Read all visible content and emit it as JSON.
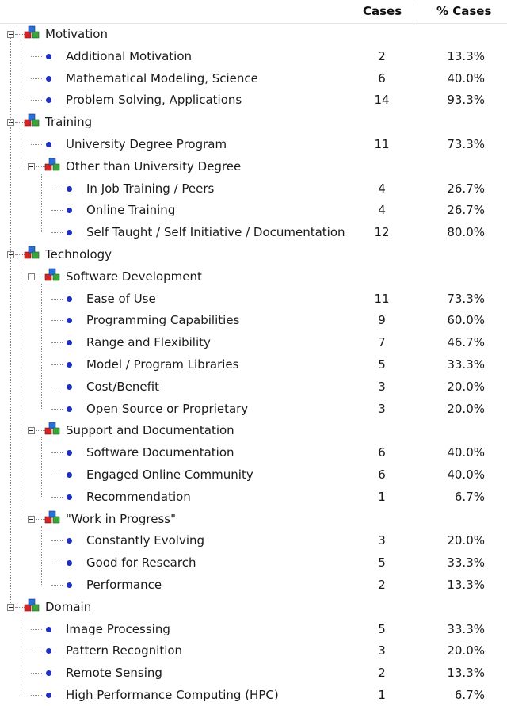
{
  "header": {
    "cases": "Cases",
    "pct": "% Cases"
  },
  "colors": {
    "dot": "#1f2fbf",
    "cube_red": "#d42424",
    "cube_blue": "#2a6fd6",
    "cube_green": "#3aa63a",
    "lines": "#8a8a8a"
  },
  "rows": [
    {
      "level": 0,
      "kind": "group",
      "label": "Motivation"
    },
    {
      "level": 1,
      "kind": "item",
      "label": "Additional Motivation",
      "cases": "2",
      "pct": "13.3%"
    },
    {
      "level": 1,
      "kind": "item",
      "label": "Mathematical Modeling, Science",
      "cases": "6",
      "pct": "40.0%"
    },
    {
      "level": 1,
      "kind": "item",
      "label": "Problem Solving, Applications",
      "cases": "14",
      "pct": "93.3%"
    },
    {
      "level": 0,
      "kind": "group",
      "label": "Training"
    },
    {
      "level": 1,
      "kind": "item",
      "label": "University Degree Program",
      "cases": "11",
      "pct": "73.3%"
    },
    {
      "level": 1,
      "kind": "group",
      "label": "Other than University Degree"
    },
    {
      "level": 2,
      "kind": "item",
      "label": "In Job Training / Peers",
      "cases": "4",
      "pct": "26.7%"
    },
    {
      "level": 2,
      "kind": "item",
      "label": "Online Training",
      "cases": "4",
      "pct": "26.7%"
    },
    {
      "level": 2,
      "kind": "item",
      "label": "Self Taught / Self Initiative / Documentation",
      "cases": "12",
      "pct": "80.0%"
    },
    {
      "level": 0,
      "kind": "group",
      "label": "Technology"
    },
    {
      "level": 1,
      "kind": "group",
      "label": "Software Development"
    },
    {
      "level": 2,
      "kind": "item",
      "label": "Ease of Use",
      "cases": "11",
      "pct": "73.3%"
    },
    {
      "level": 2,
      "kind": "item",
      "label": "Programming Capabilities",
      "cases": "9",
      "pct": "60.0%"
    },
    {
      "level": 2,
      "kind": "item",
      "label": "Range  and Flexibility",
      "cases": "7",
      "pct": "46.7%"
    },
    {
      "level": 2,
      "kind": "item",
      "label": "Model / Program Libraries",
      "cases": "5",
      "pct": "33.3%"
    },
    {
      "level": 2,
      "kind": "item",
      "label": "Cost/Benefit",
      "cases": "3",
      "pct": "20.0%"
    },
    {
      "level": 2,
      "kind": "item",
      "label": "Open Source or Proprietary",
      "cases": "3",
      "pct": "20.0%"
    },
    {
      "level": 1,
      "kind": "group",
      "label": "Support and Documentation"
    },
    {
      "level": 2,
      "kind": "item",
      "label": "Software  Documentation",
      "cases": "6",
      "pct": "40.0%"
    },
    {
      "level": 2,
      "kind": "item",
      "label": "Engaged Online Community",
      "cases": "6",
      "pct": "40.0%"
    },
    {
      "level": 2,
      "kind": "item",
      "label": "Recommendation",
      "cases": "1",
      "pct": "6.7%"
    },
    {
      "level": 1,
      "kind": "group",
      "label": "\"Work in Progress\""
    },
    {
      "level": 2,
      "kind": "item",
      "label": "Constantly Evolving",
      "cases": "3",
      "pct": "20.0%"
    },
    {
      "level": 2,
      "kind": "item",
      "label": "Good for Research",
      "cases": "5",
      "pct": "33.3%"
    },
    {
      "level": 2,
      "kind": "item",
      "label": "Performance",
      "cases": "2",
      "pct": "13.3%"
    },
    {
      "level": 0,
      "kind": "group",
      "label": "Domain"
    },
    {
      "level": 1,
      "kind": "item",
      "label": "Image Processing",
      "cases": "5",
      "pct": "33.3%"
    },
    {
      "level": 1,
      "kind": "item",
      "label": "Pattern Recognition",
      "cases": "3",
      "pct": "20.0%"
    },
    {
      "level": 1,
      "kind": "item",
      "label": "Remote Sensing",
      "cases": "2",
      "pct": "13.3%"
    },
    {
      "level": 1,
      "kind": "item",
      "label": "High Performance Computing (HPC)",
      "cases": "1",
      "pct": "6.7%"
    }
  ]
}
